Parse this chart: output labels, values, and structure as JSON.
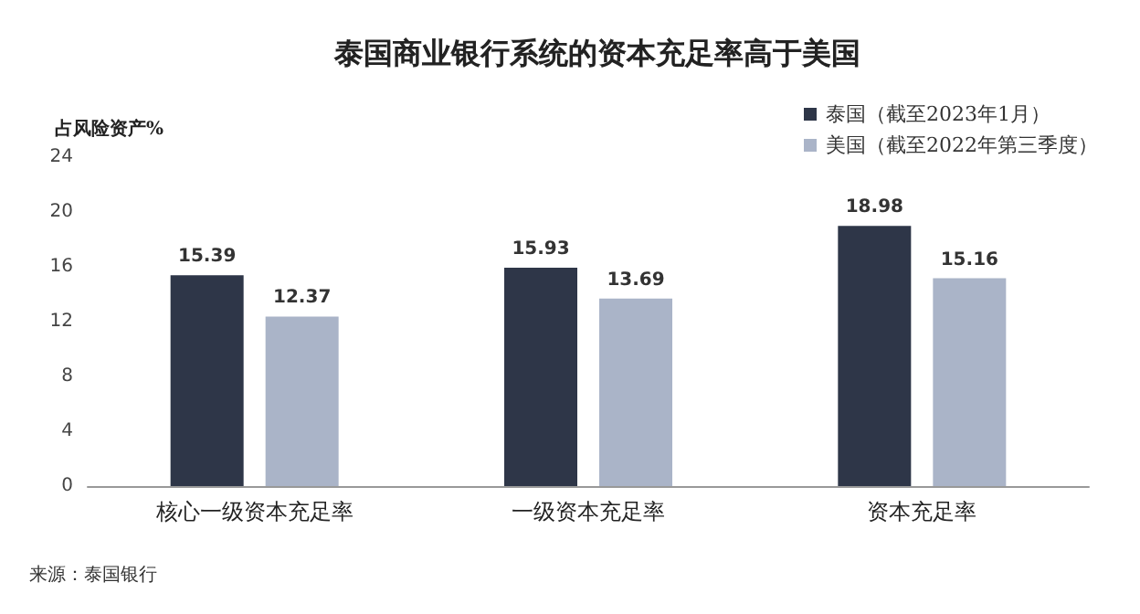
{
  "chart_data": {
    "type": "bar",
    "title": "泰国商业银行系统的资本充足率高于美国",
    "ylabel": "占风险资产%",
    "categories": [
      "核心一级资本充足率",
      "一级资本充足率",
      "资本充足率"
    ],
    "series": [
      {
        "name": "泰国（截至2023年1月）",
        "color": "#2e3648",
        "values": [
          15.39,
          15.93,
          18.98
        ]
      },
      {
        "name": "美国（截至2022年第三季度）",
        "color": "#aab4c8",
        "values": [
          12.37,
          13.69,
          15.16
        ]
      }
    ],
    "ylim": [
      0,
      24
    ],
    "yticks": [
      0,
      4,
      8,
      12,
      16,
      20,
      24
    ],
    "grid": false,
    "legend": "top right",
    "data_labels": true,
    "annotations": [
      "来源：泰国银行"
    ]
  }
}
